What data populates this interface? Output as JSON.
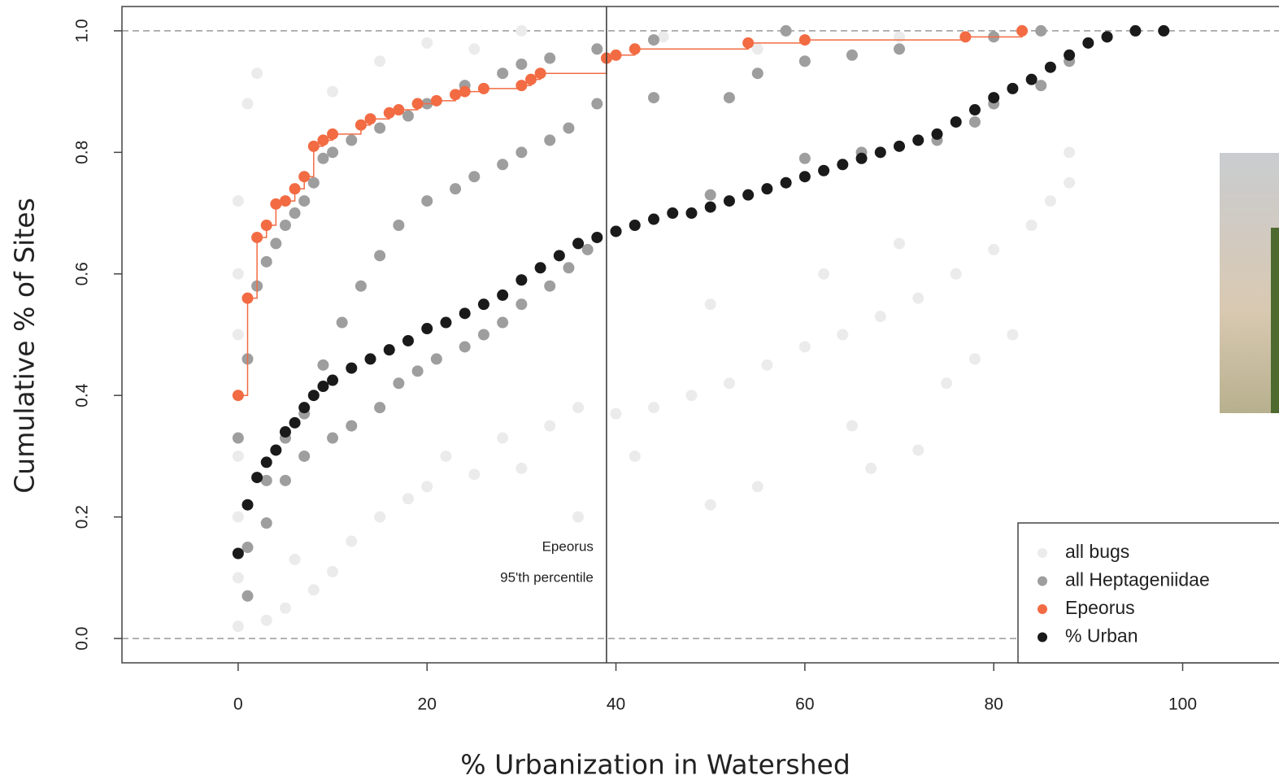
{
  "chart_data": {
    "type": "scatter",
    "xlabel": "% Urbanization in Watershed",
    "ylabel": "Cumulative % of Sites",
    "xlim": [
      -12.3,
      110.2
    ],
    "ylim": [
      -0.04,
      1.04
    ],
    "xticks": [
      0,
      20,
      40,
      60,
      80,
      100
    ],
    "yticks": [
      {
        "value": 0,
        "label": "0.0"
      },
      {
        "value": 0.2,
        "label": "0.2"
      },
      0.4,
      0.6,
      {
        "value": 0.8,
        "label": "0.8"
      },
      {
        "value": 1,
        "label": "1.0"
      }
    ],
    "hlines": [
      0,
      1
    ],
    "percentile_line": {
      "x": 39,
      "label": "Epeorus",
      "sublabel": "95'th percentile"
    },
    "legend": "bottom-right",
    "series": [
      {
        "name": "all bugs",
        "color": "#ebebeb",
        "x": [
          0,
          0,
          0,
          0,
          0,
          0,
          0,
          1,
          2,
          3,
          5,
          6,
          8,
          10,
          12,
          15,
          18,
          20,
          22,
          25,
          28,
          30,
          33,
          36,
          40,
          44,
          48,
          52,
          56,
          60,
          64,
          68,
          72,
          76,
          80,
          84,
          86,
          88,
          36,
          42,
          50,
          55,
          65,
          72,
          67,
          75,
          78,
          82,
          88,
          20,
          30,
          45,
          10,
          15,
          25,
          55,
          70,
          62,
          70,
          50
        ],
        "values": [
          0.02,
          0.1,
          0.2,
          0.3,
          0.5,
          0.6,
          0.72,
          0.88,
          0.93,
          0.03,
          0.05,
          0.13,
          0.08,
          0.11,
          0.16,
          0.2,
          0.23,
          0.25,
          0.3,
          0.27,
          0.33,
          0.28,
          0.35,
          0.38,
          0.37,
          0.38,
          0.4,
          0.42,
          0.45,
          0.48,
          0.5,
          0.53,
          0.56,
          0.6,
          0.64,
          0.68,
          0.72,
          0.8,
          0.2,
          0.3,
          0.22,
          0.25,
          0.35,
          0.31,
          0.28,
          0.42,
          0.46,
          0.5,
          0.75,
          0.98,
          1.0,
          0.99,
          0.9,
          0.95,
          0.97,
          0.97,
          0.99,
          0.6,
          0.65,
          0.55
        ]
      },
      {
        "name": "all Heptageniidae",
        "color": "#9e9e9e",
        "x": [
          0,
          1,
          2,
          3,
          4,
          5,
          6,
          7,
          8,
          9,
          10,
          12,
          15,
          18,
          20,
          24,
          28,
          30,
          33,
          38,
          44,
          58,
          1,
          3,
          5,
          7,
          9,
          11,
          13,
          15,
          17,
          20,
          23,
          25,
          28,
          30,
          33,
          35,
          38,
          44,
          52,
          55,
          60,
          65,
          70,
          80,
          85,
          1,
          3,
          5,
          7,
          10,
          12,
          15,
          17,
          19,
          21,
          24,
          26,
          28,
          30,
          33,
          35,
          37,
          40,
          50,
          60,
          66,
          74,
          78,
          80,
          85,
          88,
          92
        ],
        "values": [
          0.33,
          0.46,
          0.58,
          0.62,
          0.65,
          0.68,
          0.7,
          0.72,
          0.75,
          0.79,
          0.8,
          0.82,
          0.84,
          0.86,
          0.88,
          0.91,
          0.93,
          0.945,
          0.955,
          0.97,
          0.985,
          1.0,
          0.15,
          0.26,
          0.33,
          0.37,
          0.45,
          0.52,
          0.58,
          0.63,
          0.68,
          0.72,
          0.74,
          0.76,
          0.78,
          0.8,
          0.82,
          0.84,
          0.88,
          0.89,
          0.89,
          0.93,
          0.95,
          0.96,
          0.97,
          0.99,
          1.0,
          0.07,
          0.19,
          0.26,
          0.3,
          0.33,
          0.35,
          0.38,
          0.42,
          0.44,
          0.46,
          0.48,
          0.5,
          0.52,
          0.55,
          0.58,
          0.61,
          0.64,
          0.67,
          0.73,
          0.79,
          0.8,
          0.82,
          0.85,
          0.88,
          0.91,
          0.95,
          0.99
        ]
      },
      {
        "name": "Epeorus",
        "color": "#f26b43",
        "step": true,
        "x": [
          0,
          1,
          2,
          3,
          4,
          5,
          6,
          7,
          8,
          9,
          10,
          13,
          14,
          16,
          17,
          19,
          21,
          23,
          24,
          26,
          30,
          31,
          32,
          39,
          40,
          42,
          54,
          60,
          77,
          83
        ],
        "values": [
          0.4,
          0.56,
          0.66,
          0.68,
          0.715,
          0.72,
          0.74,
          0.76,
          0.81,
          0.82,
          0.83,
          0.845,
          0.855,
          0.865,
          0.87,
          0.88,
          0.885,
          0.895,
          0.9,
          0.905,
          0.91,
          0.92,
          0.93,
          0.955,
          0.96,
          0.97,
          0.98,
          0.985,
          0.99,
          1.0
        ]
      },
      {
        "name": "% Urban",
        "color": "#1a1a1a",
        "x": [
          0,
          1,
          2,
          3,
          4,
          5,
          6,
          7,
          8,
          9,
          10,
          12,
          14,
          16,
          18,
          20,
          22,
          24,
          26,
          28,
          30,
          32,
          34,
          36,
          38,
          40,
          42,
          44,
          46,
          48,
          50,
          52,
          54,
          56,
          58,
          60,
          62,
          64,
          66,
          68,
          70,
          72,
          74,
          76,
          78,
          80,
          82,
          84,
          86,
          88,
          90,
          92,
          95,
          98
        ],
        "values": [
          0.14,
          0.22,
          0.265,
          0.29,
          0.31,
          0.34,
          0.355,
          0.38,
          0.4,
          0.415,
          0.425,
          0.445,
          0.46,
          0.475,
          0.49,
          0.51,
          0.52,
          0.535,
          0.55,
          0.565,
          0.59,
          0.61,
          0.63,
          0.65,
          0.66,
          0.67,
          0.68,
          0.69,
          0.7,
          0.7,
          0.71,
          0.72,
          0.73,
          0.74,
          0.75,
          0.76,
          0.77,
          0.78,
          0.79,
          0.8,
          0.81,
          0.82,
          0.83,
          0.85,
          0.87,
          0.89,
          0.905,
          0.92,
          0.94,
          0.96,
          0.98,
          0.99,
          1.0,
          1.0
        ]
      }
    ]
  }
}
